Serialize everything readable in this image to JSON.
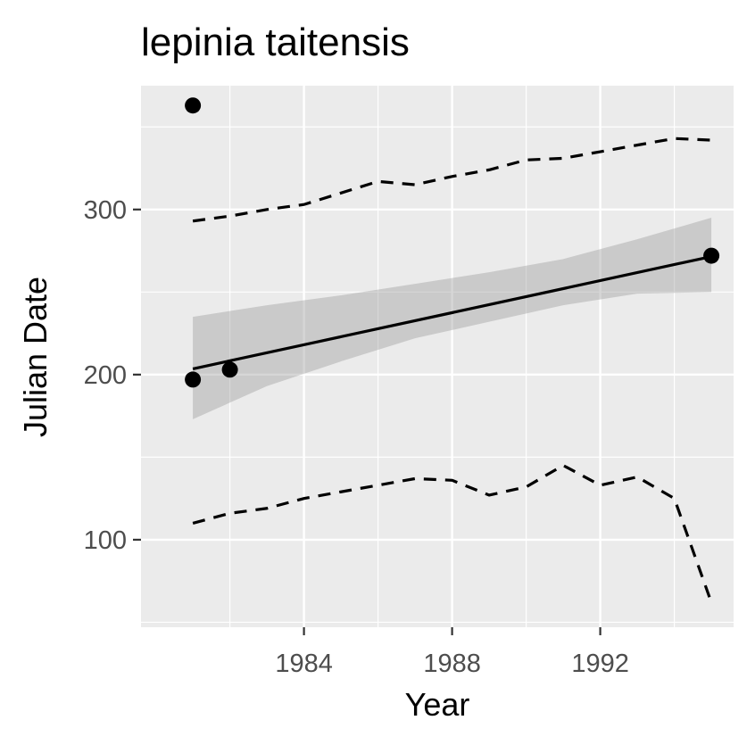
{
  "chart_data": {
    "type": "scatter",
    "title": "lepinia taitensis",
    "xlabel": "Year",
    "ylabel": "Julian Date",
    "xlim": [
      1979.6,
      1995.6
    ],
    "ylim": [
      47,
      375
    ],
    "x_ticks": [
      1984,
      1988,
      1992
    ],
    "x_tick_labels": [
      "1984",
      "1988",
      "1992"
    ],
    "y_ticks": [
      100,
      200,
      300
    ],
    "y_tick_labels": [
      "100",
      "200",
      "300"
    ],
    "grid": true,
    "points": [
      {
        "x": 1981,
        "y": 363
      },
      {
        "x": 1981,
        "y": 197
      },
      {
        "x": 1982,
        "y": 203
      },
      {
        "x": 1995,
        "y": 272
      }
    ],
    "fit_line": {
      "x": [
        1981,
        1995
      ],
      "y": [
        203.5,
        271.5
      ]
    },
    "confidence_band": {
      "x": [
        1981,
        1983,
        1985,
        1987,
        1989,
        1991,
        1993,
        1995
      ],
      "lower": [
        173,
        193,
        208,
        222,
        232,
        242,
        249,
        250
      ],
      "upper": [
        235,
        242,
        248,
        255,
        262,
        270,
        282,
        295
      ]
    },
    "upper_quantile": {
      "x": [
        1981,
        1982,
        1983,
        1984,
        1985,
        1986,
        1987,
        1988,
        1989,
        1990,
        1991,
        1992,
        1993,
        1994,
        1995
      ],
      "y": [
        293,
        296,
        300,
        303,
        310,
        317,
        315,
        320,
        324,
        330,
        331,
        335,
        339,
        343,
        342
      ]
    },
    "lower_quantile": {
      "x": [
        1981,
        1982,
        1983,
        1984,
        1985,
        1986,
        1987,
        1988,
        1989,
        1990,
        1991,
        1992,
        1993,
        1994,
        1995
      ],
      "y": [
        110,
        116,
        119,
        125,
        129,
        133,
        137,
        136,
        127,
        132,
        145,
        133,
        138,
        125,
        62
      ]
    }
  }
}
